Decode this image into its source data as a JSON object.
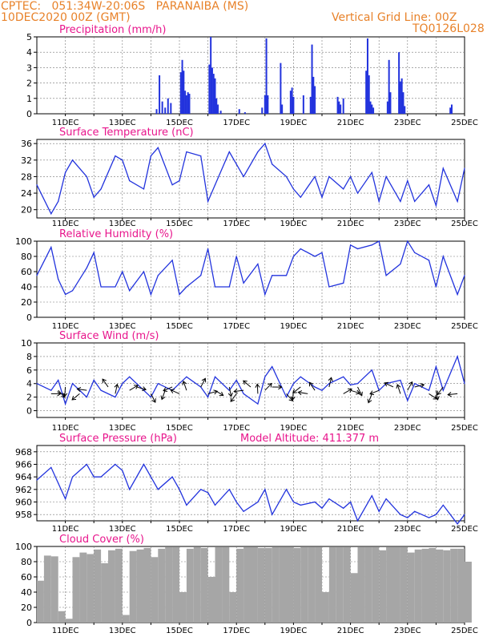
{
  "header": {
    "line1": "CPTEC:   051:34W-20:06S   PARANAIBA (MS)",
    "line2": "10DEC2020 00Z (GMT)",
    "right1": "Vertical Grid Line: 00Z",
    "right2": "TQ0126L028"
  },
  "colors": {
    "header": "#e8822a",
    "title": "#e8158c",
    "line": "#2233dd",
    "cloud": "#a6a6a6",
    "wind": "#000000"
  },
  "x_labels": [
    "11DEC",
    "13DEC",
    "15DEC",
    "17DEC",
    "19DEC",
    "21DEC",
    "23DEC",
    "25DEC"
  ],
  "chart_data": [
    {
      "type": "bar",
      "title": "Precipitation (mm/h)",
      "x_range": [
        10,
        25
      ],
      "ylim": [
        0,
        5
      ],
      "yticks": [
        "0",
        "1",
        "2",
        "3",
        "4",
        "5"
      ],
      "x": [
        14.2,
        14.3,
        14.4,
        14.5,
        14.6,
        14.7,
        15.05,
        15.1,
        15.15,
        15.2,
        15.25,
        15.3,
        15.35,
        16.05,
        16.1,
        16.15,
        16.2,
        16.25,
        16.3,
        16.35,
        16.45,
        17.1,
        17.3,
        17.9,
        18.0,
        18.05,
        18.1,
        18.55,
        18.6,
        18.9,
        18.95,
        19.0,
        19.35,
        19.6,
        19.65,
        19.7,
        19.75,
        20.55,
        20.6,
        20.65,
        20.75,
        21.55,
        21.6,
        21.65,
        21.7,
        21.75,
        21.8,
        22.3,
        22.35,
        22.4,
        22.7,
        22.75,
        22.8,
        22.85,
        22.9,
        24.5,
        24.55
      ],
      "values": [
        0.3,
        2.5,
        0.8,
        0.4,
        1.0,
        0.7,
        2.7,
        3.5,
        2.8,
        1.5,
        1.2,
        1.4,
        1.3,
        3.2,
        5.0,
        3.0,
        2.6,
        2.3,
        1.0,
        0.6,
        0.2,
        0.3,
        0.1,
        0.4,
        1.2,
        4.9,
        1.2,
        3.3,
        0.6,
        1.5,
        1.7,
        1.1,
        1.2,
        1.1,
        4.5,
        2.4,
        1.8,
        1.1,
        0.8,
        0.6,
        1.0,
        2.8,
        4.9,
        2.5,
        0.8,
        0.6,
        0.4,
        0.8,
        3.5,
        1.4,
        4.0,
        2.1,
        2.3,
        1.4,
        0.5,
        0.4,
        0.6
      ]
    },
    {
      "type": "line",
      "title": "Surface Temperature (nC)",
      "x_range": [
        10,
        25
      ],
      "ylim": [
        18,
        37
      ],
      "yticks": [
        "20",
        "24",
        "28",
        "32",
        "36"
      ],
      "x": [
        10.0,
        10.5,
        10.75,
        11.0,
        11.25,
        11.75,
        12.0,
        12.25,
        12.75,
        13.0,
        13.25,
        13.75,
        14.0,
        14.25,
        14.75,
        15.0,
        15.25,
        15.75,
        16.0,
        16.25,
        16.75,
        17.0,
        17.25,
        17.75,
        18.0,
        18.25,
        18.75,
        19.0,
        19.25,
        19.75,
        20.0,
        20.25,
        20.75,
        21.0,
        21.25,
        21.75,
        22.0,
        22.25,
        22.75,
        23.0,
        23.25,
        23.75,
        24.0,
        24.25,
        24.75,
        25.0
      ],
      "values": [
        26,
        19,
        22,
        29,
        32,
        28,
        23,
        25,
        33,
        32,
        27,
        25,
        33,
        35,
        26,
        27,
        34,
        33,
        22,
        26,
        34,
        31,
        28,
        34,
        36,
        31,
        28,
        25,
        23,
        28,
        23,
        28,
        25,
        28,
        24,
        29,
        22,
        28,
        22,
        27,
        22,
        26,
        21,
        30,
        22,
        30
      ]
    },
    {
      "type": "line",
      "title": "Relative Humidity (%)",
      "x_range": [
        10,
        25
      ],
      "ylim": [
        0,
        100
      ],
      "yticks": [
        "0",
        "20",
        "40",
        "60",
        "80",
        "100"
      ],
      "x": [
        10.0,
        10.5,
        10.75,
        11.0,
        11.25,
        11.75,
        12.0,
        12.25,
        12.75,
        13.0,
        13.25,
        13.75,
        14.0,
        14.25,
        14.75,
        15.0,
        15.25,
        15.75,
        16.0,
        16.25,
        16.75,
        17.0,
        17.25,
        17.75,
        18.0,
        18.25,
        18.75,
        19.0,
        19.25,
        19.75,
        20.0,
        20.25,
        20.75,
        21.0,
        21.25,
        21.75,
        22.0,
        22.25,
        22.75,
        23.0,
        23.25,
        23.75,
        24.0,
        24.25,
        24.75,
        25.0
      ],
      "values": [
        55,
        92,
        50,
        30,
        35,
        65,
        85,
        40,
        40,
        60,
        35,
        60,
        30,
        55,
        75,
        30,
        40,
        55,
        90,
        40,
        40,
        80,
        45,
        70,
        30,
        55,
        55,
        80,
        90,
        80,
        85,
        40,
        45,
        95,
        90,
        95,
        100,
        55,
        70,
        100,
        85,
        75,
        40,
        80,
        30,
        55
      ]
    },
    {
      "type": "line",
      "title": "Surface Wind (m/s)",
      "x_range": [
        10,
        25
      ],
      "ylim": [
        -1,
        10
      ],
      "yticks": [
        "0",
        "2",
        "4",
        "6",
        "8",
        "10"
      ],
      "x": [
        10.0,
        10.5,
        10.75,
        11.0,
        11.25,
        11.75,
        12.0,
        12.25,
        12.75,
        13.0,
        13.25,
        13.75,
        14.0,
        14.25,
        14.75,
        15.0,
        15.25,
        15.75,
        16.0,
        16.25,
        16.75,
        17.0,
        17.25,
        17.75,
        18.0,
        18.25,
        18.75,
        19.0,
        19.25,
        19.75,
        20.0,
        20.25,
        20.75,
        21.0,
        21.25,
        21.75,
        22.0,
        22.25,
        22.75,
        23.0,
        23.25,
        23.75,
        24.0,
        24.25,
        24.75,
        25.0
      ],
      "values": [
        4,
        3,
        4.5,
        1,
        4,
        2,
        4.5,
        3,
        2,
        4,
        5,
        3,
        2,
        4,
        3,
        4,
        5,
        3.5,
        2,
        5,
        3,
        4.5,
        2.5,
        1,
        5,
        6.5,
        2,
        4,
        5,
        3.5,
        3,
        4,
        5,
        3.8,
        4,
        6,
        3,
        4,
        4.5,
        1.5,
        4,
        3,
        6.5,
        3,
        8,
        4
      ],
      "arrows_x": [
        10.5,
        10.75,
        11.0,
        11.5,
        11.75,
        12.5,
        12.75,
        13.25,
        13.5,
        14.0,
        14.5,
        14.75,
        15.0,
        15.25,
        15.75,
        16.0,
        16.25,
        16.75,
        17.0,
        17.25,
        17.5,
        17.75,
        18.0,
        18.25,
        18.75,
        19.0,
        19.25,
        19.5,
        19.75,
        20.25,
        20.75,
        21.0,
        21.25,
        21.75,
        22.0,
        22.5,
        22.75,
        23.0,
        23.25,
        23.75,
        24.0,
        24.25,
        24.75
      ]
    },
    {
      "type": "line",
      "title": "Surface Pressure (hPa)",
      "subtitle": "Model Altitude: 411.377 m",
      "x_range": [
        10,
        25
      ],
      "ylim": [
        957,
        969
      ],
      "yticks": [
        "958",
        "960",
        "962",
        "964",
        "966",
        "968"
      ],
      "x": [
        10.0,
        10.5,
        10.75,
        11.0,
        11.25,
        11.75,
        12.0,
        12.25,
        12.75,
        13.0,
        13.25,
        13.75,
        14.0,
        14.25,
        14.75,
        15.0,
        15.25,
        15.75,
        16.0,
        16.25,
        16.75,
        17.0,
        17.25,
        17.75,
        18.0,
        18.25,
        18.75,
        19.0,
        19.25,
        19.75,
        20.0,
        20.25,
        20.75,
        21.0,
        21.25,
        21.75,
        22.0,
        22.25,
        22.75,
        23.0,
        23.25,
        23.75,
        24.0,
        24.25,
        24.75,
        25.0
      ],
      "values": [
        963.5,
        965.5,
        963,
        960.5,
        964,
        966,
        964,
        964,
        966,
        965,
        962,
        966,
        964,
        962,
        964,
        962,
        959.5,
        962,
        961.5,
        959.5,
        962,
        960,
        958.5,
        960,
        962,
        958,
        962,
        960,
        959.5,
        960,
        959,
        960.5,
        959,
        960,
        957,
        961,
        958.5,
        960.5,
        958,
        957.5,
        958.5,
        957.5,
        958,
        959.5,
        956.5,
        958
      ]
    },
    {
      "type": "bar",
      "title": "Cloud Cover (%)",
      "x_range": [
        10,
        25
      ],
      "ylim": [
        0,
        100
      ],
      "yticks": [
        "0",
        "20",
        "40",
        "60",
        "80",
        "100"
      ],
      "x": [
        10.0,
        10.25,
        10.5,
        10.75,
        11.0,
        11.25,
        11.5,
        11.75,
        12.0,
        12.25,
        12.5,
        12.75,
        13.0,
        13.25,
        13.5,
        13.75,
        14.0,
        14.25,
        14.5,
        14.75,
        15.0,
        15.25,
        15.5,
        15.75,
        16.0,
        16.25,
        16.5,
        16.75,
        17.0,
        17.25,
        17.5,
        17.75,
        18.0,
        18.25,
        18.5,
        18.75,
        19.0,
        19.25,
        19.5,
        19.75,
        20.0,
        20.25,
        20.5,
        20.75,
        21.0,
        21.25,
        21.5,
        21.75,
        22.0,
        22.25,
        22.5,
        22.75,
        23.0,
        23.25,
        23.5,
        23.75,
        24.0,
        24.25,
        24.5,
        24.75,
        25.0
      ],
      "values": [
        55,
        88,
        87,
        15,
        5,
        86,
        92,
        90,
        96,
        78,
        95,
        97,
        10,
        94,
        96,
        98,
        86,
        97,
        99,
        99,
        40,
        97,
        99,
        98,
        60,
        99,
        99,
        40,
        97,
        99,
        99,
        98,
        98,
        99,
        99,
        99,
        98,
        99,
        99,
        99,
        40,
        99,
        99,
        99,
        65,
        99,
        99,
        99,
        95,
        99,
        99,
        99,
        92,
        96,
        97,
        98,
        96,
        95,
        97,
        97,
        80
      ]
    }
  ]
}
